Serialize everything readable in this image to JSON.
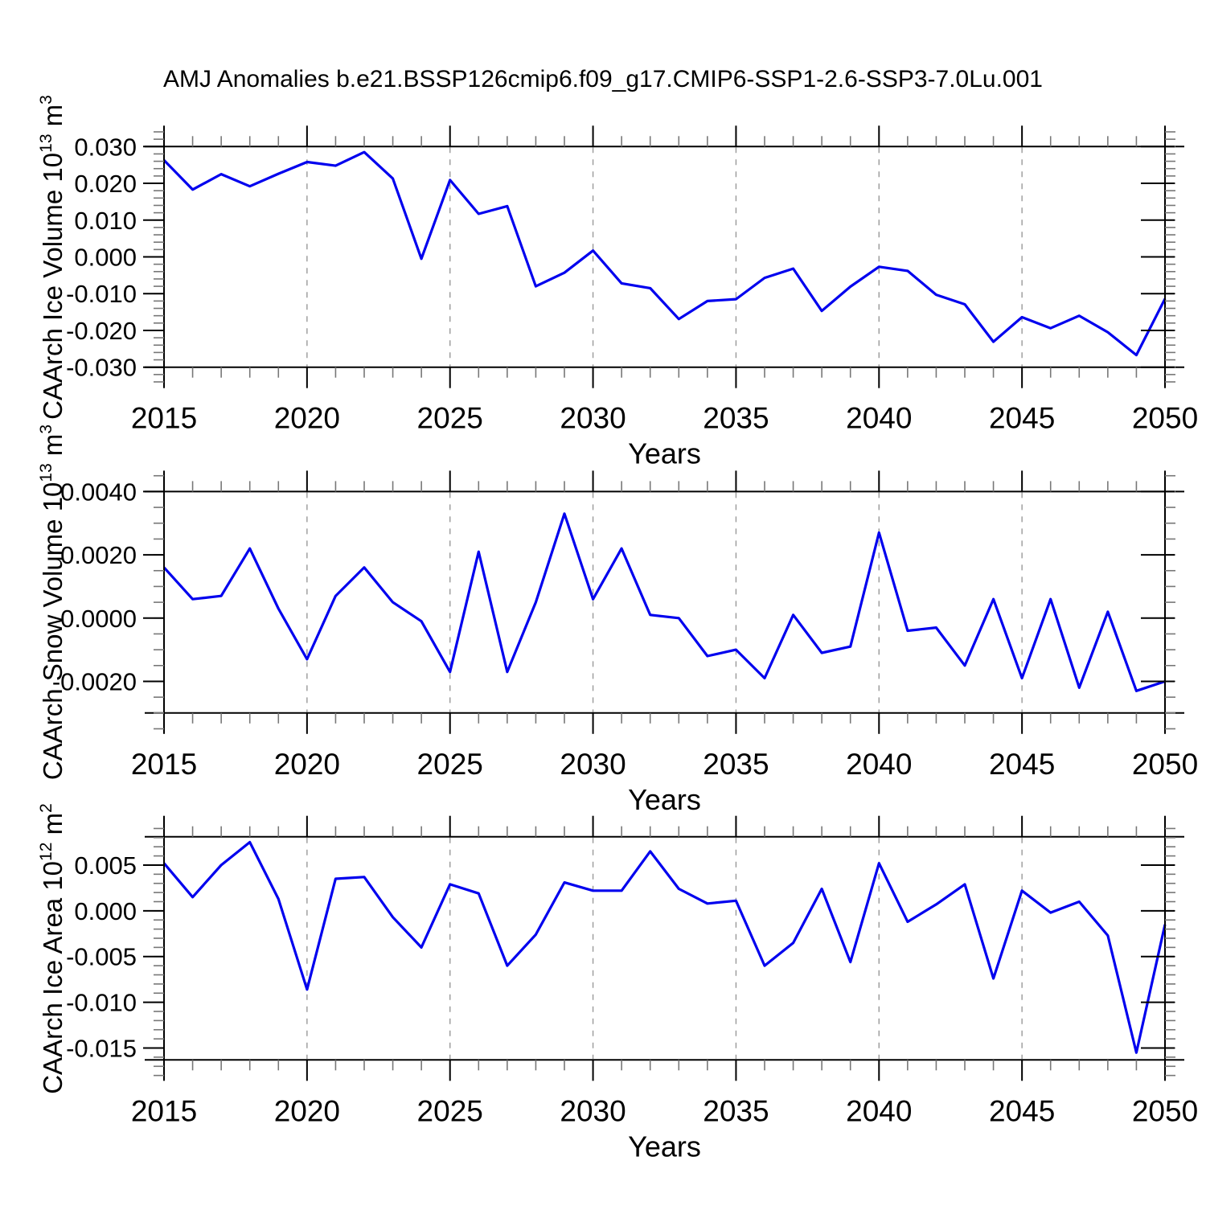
{
  "title": "AMJ Anomalies b.e21.BSSP126cmip6.f09_g17.CMIP6-SSP1-2.6-SSP3-7.0Lu.001",
  "figure": {
    "background": "#ffffff"
  },
  "colors": {
    "line": "#0000ee",
    "axis": "#000000",
    "major_tick": "#000000",
    "minor_tick": "#777777",
    "grid": "#999999",
    "text": "#000000"
  },
  "x_axis": {
    "label": "Years",
    "start": 2015,
    "end": 2050,
    "major_ticks": [
      2015,
      2020,
      2025,
      2030,
      2035,
      2040,
      2045,
      2050
    ],
    "major_tick_labels": [
      "2015",
      "2020",
      "2025",
      "2030",
      "2035",
      "2040",
      "2045",
      "2050"
    ],
    "minor_step": 1,
    "grid_years": [
      2020,
      2025,
      2030,
      2035,
      2040,
      2045
    ],
    "years": [
      2015,
      2016,
      2017,
      2018,
      2019,
      2020,
      2021,
      2022,
      2023,
      2024,
      2025,
      2026,
      2027,
      2028,
      2029,
      2030,
      2031,
      2032,
      2033,
      2034,
      2035,
      2036,
      2037,
      2038,
      2039,
      2040,
      2041,
      2042,
      2043,
      2044,
      2045,
      2046,
      2047,
      2048,
      2049,
      2050
    ]
  },
  "chart_data": [
    {
      "type": "line",
      "name": "ice-volume",
      "title": "",
      "xlabel": "Years",
      "ylabel_text": "CAArch Ice Volume 10^13 m^3",
      "ylabel": {
        "base": "CAArch Ice Volume 10",
        "exponent": "13",
        "unit": " m",
        "unit_exponent": "3"
      },
      "y_range": {
        "top": 0.03,
        "bottom": -0.03
      },
      "y_tick_labels": [
        "0.030",
        "0.020",
        "0.010",
        "0.000",
        "-0.010",
        "-0.020",
        "-0.030"
      ],
      "y_minor_step": 0.002,
      "values": [
        0.0263,
        0.0183,
        0.0225,
        0.0192,
        0.0226,
        0.0258,
        0.0248,
        0.0285,
        0.0213,
        -0.0005,
        0.0209,
        0.0117,
        0.0138,
        -0.008,
        -0.0043,
        0.0017,
        -0.0072,
        -0.0085,
        -0.0169,
        -0.012,
        -0.0115,
        -0.0057,
        -0.0032,
        -0.0147,
        -0.0081,
        -0.0027,
        -0.0038,
        -0.0103,
        -0.0129,
        -0.0231,
        -0.0164,
        -0.0194,
        -0.016,
        -0.0205,
        -0.0267,
        -0.0114
      ]
    },
    {
      "type": "line",
      "name": "snow-volume",
      "title": "",
      "xlabel": "Years",
      "ylabel_text": "CAArch Snow Volume 10^13 m^3",
      "ylabel": {
        "base": "CAArch Snow Volume 10",
        "exponent": "13",
        "unit": " m",
        "unit_exponent": "3"
      },
      "y_range": {
        "top": 0.004,
        "bottom": -0.003
      },
      "y_tick_labels": [
        "0.0040",
        "0.0020",
        "0.0000",
        "-0.0020"
      ],
      "y_minor_step": 0.0005,
      "values": [
        0.0016,
        0.0006,
        0.0007,
        0.0022,
        0.0003,
        -0.0013,
        0.0007,
        0.0016,
        0.0005,
        -0.0001,
        -0.0017,
        0.0021,
        -0.0017,
        0.0005,
        0.0033,
        0.0006,
        0.0022,
        0.0001,
        0.0,
        -0.0012,
        -0.001,
        -0.0019,
        0.0001,
        -0.0011,
        -0.0009,
        0.0027,
        -0.0004,
        -0.0003,
        -0.0015,
        0.0006,
        -0.0019,
        0.0006,
        -0.0022,
        0.0002,
        -0.0023,
        -0.002
      ]
    },
    {
      "type": "line",
      "name": "ice-area",
      "title": "",
      "xlabel": "Years",
      "ylabel_text": "CAArch Ice Area 10^12 m^2",
      "ylabel": {
        "base": "CAArch Ice Area 10",
        "exponent": "12",
        "unit": " m",
        "unit_exponent": "2"
      },
      "y_range": {
        "top": 0.0081,
        "bottom": -0.0163
      },
      "y_tick_labels": [
        "0.005",
        "0.000",
        "-0.005",
        "-0.010",
        "-0.015"
      ],
      "y_minor_step": 0.001,
      "values": [
        0.0052,
        0.0015,
        0.005,
        0.0075,
        0.0013,
        -0.0086,
        0.0035,
        0.0037,
        -0.0007,
        -0.004,
        0.0029,
        0.0019,
        -0.006,
        -0.0026,
        0.0031,
        0.0022,
        0.0022,
        0.0065,
        0.0024,
        0.0008,
        0.0011,
        -0.006,
        -0.0035,
        0.0024,
        -0.0056,
        0.0052,
        -0.0012,
        0.0007,
        0.0029,
        -0.0074,
        0.0022,
        -0.0002,
        0.001,
        -0.0027,
        -0.0155,
        -0.0015
      ]
    }
  ]
}
